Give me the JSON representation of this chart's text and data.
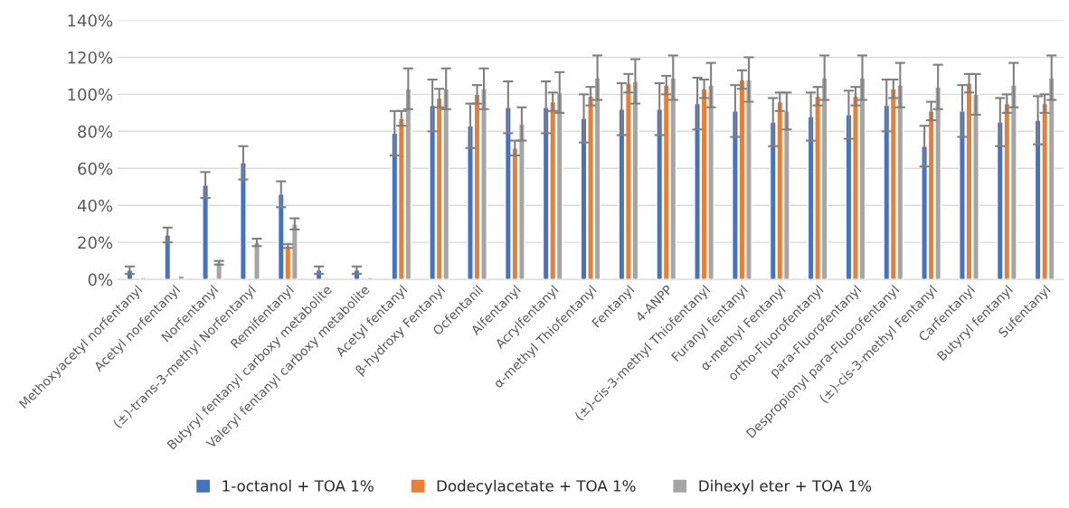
{
  "chart_data": {
    "type": "bar",
    "categories": [
      "Methoxyacetyl norfentanyl",
      "Acetyl norfentanyl",
      "Norfentanyl",
      "(±)-trans-3-methyl Norfentanyl",
      "Remifentanyl",
      "Butyryl fentanyl carboxy metabolite",
      "Valeryl fentanyl carboxy metabolite",
      "Acetyl fentanyl",
      "β-hydroxy Fentanyl",
      "Ocfentanil",
      "Alfentanyl",
      "Acrylfentanyl",
      "α-methyl Thiofentanyl",
      "Fentanyl",
      "4-ANPP",
      "(±)-cis-3-methyl Thiofentanyl",
      "Furanyl fentanyl",
      "α-methyl Fentanyl",
      "ortho-Fluorofentanyl",
      "para-Fluorofentanyl",
      "Despropionyl para-Fluorofentanyl",
      "(±)-cis-3-methyl Fentanyl",
      "Carfentanyl",
      "Butyryl fentanyl",
      "Sufentanyl"
    ],
    "series": [
      {
        "name": "1-octanol + TOA 1%",
        "color": "#4472c4",
        "values": [
          5,
          24,
          51,
          63,
          46,
          5,
          5,
          79,
          94,
          83,
          93,
          93,
          87,
          92,
          92,
          95,
          91,
          85,
          88,
          89,
          94,
          72,
          91,
          85,
          86
        ],
        "errors": [
          2,
          4,
          7,
          9,
          7,
          2,
          2,
          12,
          14,
          12,
          14,
          14,
          13,
          14,
          14,
          14,
          14,
          13,
          13,
          13,
          14,
          11,
          14,
          13,
          13
        ]
      },
      {
        "name": "Dodecylacetate + TOA 1%",
        "color": "#ed7d31",
        "values": [
          null,
          null,
          null,
          null,
          18,
          null,
          null,
          87,
          98,
          100,
          71,
          96,
          99,
          106,
          105,
          103,
          108,
          96,
          99,
          99,
          103,
          91,
          106,
          95,
          95
        ],
        "errors": [
          null,
          null,
          null,
          null,
          1,
          null,
          null,
          4,
          5,
          5,
          4,
          5,
          5,
          5,
          5,
          5,
          5,
          5,
          5,
          5,
          5,
          5,
          5,
          5,
          5
        ]
      },
      {
        "name": "Dihexyl eter + TOA 1%",
        "color": "#a5a5a5",
        "values": [
          1,
          2,
          9,
          20,
          30,
          null,
          1,
          103,
          103,
          103,
          84,
          101,
          109,
          107,
          109,
          105,
          108,
          91,
          109,
          109,
          105,
          104,
          100,
          105,
          109
        ],
        "errors": [
          null,
          null,
          1,
          2,
          3,
          null,
          null,
          11,
          11,
          11,
          9,
          11,
          12,
          12,
          12,
          12,
          12,
          10,
          12,
          12,
          12,
          12,
          11,
          12,
          12
        ]
      }
    ],
    "ylim": [
      0,
      140
    ],
    "yticks": [
      {
        "value": 0,
        "label": "0%"
      },
      {
        "value": 20,
        "label": "20%"
      },
      {
        "value": 40,
        "label": "40%"
      },
      {
        "value": 60,
        "label": "60%"
      },
      {
        "value": 80,
        "label": "80%"
      },
      {
        "value": 100,
        "label": "100%"
      },
      {
        "value": 120,
        "label": "120%"
      },
      {
        "value": 140,
        "label": "140%"
      }
    ],
    "grid": "y",
    "legend": "bottom"
  }
}
